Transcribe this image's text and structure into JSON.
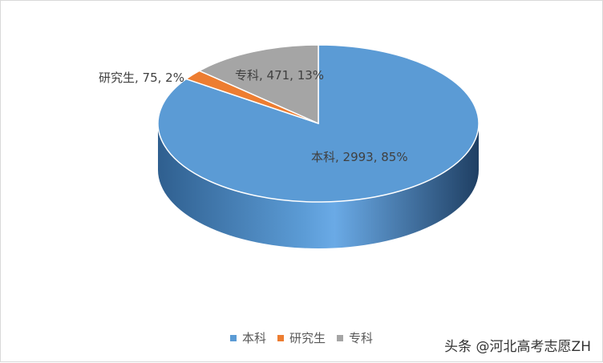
{
  "chart_data": {
    "type": "pie",
    "title": "",
    "slices": [
      {
        "name": "本科",
        "value": 2993,
        "percent": 85,
        "label": "本科, 2993, 85%",
        "color": "#5b9bd5"
      },
      {
        "name": "研究生",
        "value": 75,
        "percent": 2,
        "label": "研究生, 75, 2%",
        "color": "#ed7d31"
      },
      {
        "name": "专科",
        "value": 471,
        "percent": 13,
        "label": "专科, 471, 13%",
        "color": "#a5a5a5"
      }
    ],
    "legend_position": "bottom",
    "style": "3d"
  },
  "legend": {
    "items": [
      {
        "label": "本科",
        "color": "#5b9bd5"
      },
      {
        "label": "研究生",
        "color": "#ed7d31"
      },
      {
        "label": "专科",
        "color": "#a5a5a5"
      }
    ]
  },
  "watermark": "头条 @河北高考志愿ZH"
}
